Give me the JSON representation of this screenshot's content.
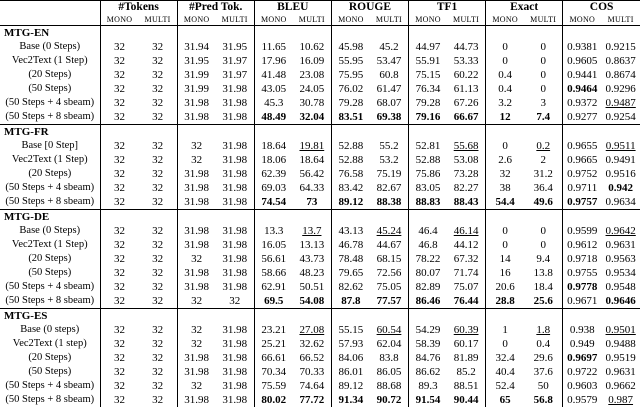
{
  "table": {
    "groups": [
      "#Tokens",
      "#Pred Tok.",
      "BLEU",
      "ROUGE",
      "TF1",
      "Exact",
      "COS"
    ],
    "subheaders": [
      "MONO",
      "MULTI"
    ],
    "sections": [
      {
        "title": "MTG-EN",
        "rows": [
          {
            "label": "Base (0 Steps)",
            "cells": [
              32,
              32,
              31.94,
              31.95,
              11.65,
              10.62,
              45.98,
              45.2,
              44.97,
              44.73,
              0,
              0,
              0.9381,
              0.9215
            ],
            "bold": [],
            "underline": []
          },
          {
            "label": "Vec2Text (1 Step)",
            "cells": [
              32,
              32,
              31.95,
              31.97,
              17.96,
              16.09,
              55.95,
              53.47,
              55.91,
              53.33,
              0,
              0,
              0.9605,
              0.8637
            ],
            "bold": [],
            "underline": []
          },
          {
            "label": "(20 Steps)",
            "cells": [
              32,
              32,
              31.99,
              31.97,
              41.48,
              23.08,
              75.95,
              60.8,
              75.15,
              60.22,
              0.4,
              0,
              0.9441,
              0.8674
            ],
            "bold": [],
            "underline": []
          },
          {
            "label": "(50 Steps)",
            "cells": [
              32,
              32,
              31.99,
              31.98,
              43.05,
              24.05,
              76.02,
              61.47,
              76.34,
              61.13,
              0.4,
              0,
              0.9464,
              0.9296
            ],
            "bold": [
              12
            ],
            "underline": []
          },
          {
            "label": "(50 Steps + 4 sbeam)",
            "cells": [
              32,
              32,
              31.98,
              31.98,
              45.3,
              30.78,
              79.28,
              68.07,
              79.28,
              67.26,
              3.2,
              3,
              0.9372,
              0.9487
            ],
            "bold": [],
            "underline": [
              13
            ]
          },
          {
            "label": "(50 Steps + 8 sbeam)",
            "cells": [
              32,
              32,
              31.98,
              31.98,
              48.49,
              32.04,
              83.51,
              69.38,
              79.16,
              66.67,
              12,
              7.4,
              0.9277,
              0.9254
            ],
            "bold": [
              4,
              5,
              6,
              7,
              8,
              9,
              10,
              11
            ],
            "underline": []
          }
        ]
      },
      {
        "title": "MTG-FR",
        "rows": [
          {
            "label": "Base [0 Step]",
            "cells": [
              32,
              32,
              32,
              31.98,
              18.64,
              19.81,
              52.88,
              55.2,
              52.81,
              55.68,
              0,
              0.2,
              0.9655,
              0.9511
            ],
            "bold": [],
            "underline": [
              5,
              9,
              11,
              13
            ]
          },
          {
            "label": "Vec2Text (1 Step)",
            "cells": [
              32,
              32,
              32,
              31.98,
              18.06,
              18.64,
              52.88,
              53.2,
              52.88,
              53.08,
              2.6,
              2,
              0.9665,
              0.9491
            ],
            "bold": [],
            "underline": []
          },
          {
            "label": "(20 Steps)",
            "cells": [
              32,
              32,
              31.98,
              31.98,
              62.39,
              56.42,
              76.58,
              75.19,
              75.86,
              73.28,
              32,
              31.2,
              0.9752,
              0.9516
            ],
            "bold": [],
            "underline": []
          },
          {
            "label": "(50 Steps + 4 sbeam)",
            "cells": [
              32,
              32,
              31.98,
              31.98,
              69.03,
              64.33,
              83.42,
              82.67,
              83.05,
              82.27,
              38,
              36.4,
              0.9711,
              0.942
            ],
            "bold": [
              13
            ],
            "underline": []
          },
          {
            "label": "(50 Steps + 8 sbeam)",
            "cells": [
              32,
              32,
              31.98,
              31.98,
              74.54,
              73,
              89.12,
              88.38,
              88.83,
              88.43,
              54.4,
              49.6,
              0.9757,
              0.9634
            ],
            "bold": [
              4,
              5,
              6,
              7,
              8,
              9,
              10,
              11,
              12
            ],
            "underline": []
          }
        ]
      },
      {
        "title": "MTG-DE",
        "rows": [
          {
            "label": "Base (0 Steps)",
            "cells": [
              32,
              32,
              31.98,
              31.98,
              13.3,
              13.7,
              43.13,
              45.24,
              46.4,
              46.14,
              0,
              0,
              0.9599,
              0.9642
            ],
            "bold": [],
            "underline": [
              5,
              7,
              9,
              13
            ]
          },
          {
            "label": "Vec2Text (1 Step)",
            "cells": [
              32,
              32,
              31.98,
              31.98,
              16.05,
              13.13,
              46.78,
              44.67,
              46.8,
              44.12,
              0,
              0,
              0.9612,
              0.9631
            ],
            "bold": [],
            "underline": []
          },
          {
            "label": "(20 Steps)",
            "cells": [
              32,
              32,
              32,
              31.98,
              56.61,
              43.73,
              78.48,
              68.15,
              78.22,
              67.32,
              14,
              9.4,
              0.9718,
              0.9563
            ],
            "bold": [],
            "underline": []
          },
          {
            "label": "(50 Steps)",
            "cells": [
              32,
              32,
              31.98,
              31.98,
              58.66,
              48.23,
              79.65,
              72.56,
              80.07,
              71.74,
              16,
              13.8,
              0.9755,
              0.9534
            ],
            "bold": [],
            "underline": []
          },
          {
            "label": "(50 Steps + 4 sbeam)",
            "cells": [
              32,
              32,
              31.98,
              31.98,
              62.91,
              50.51,
              82.62,
              75.05,
              82.89,
              75.07,
              20.6,
              18.4,
              0.9778,
              0.9548
            ],
            "bold": [
              12
            ],
            "underline": []
          },
          {
            "label": "(50 Steps + 8 sbeam)",
            "cells": [
              32,
              32,
              32,
              32,
              69.5,
              54.08,
              87.8,
              77.57,
              86.46,
              76.44,
              28.8,
              25.6,
              0.9671,
              0.9646
            ],
            "bold": [
              4,
              5,
              6,
              7,
              8,
              9,
              10,
              11,
              13
            ],
            "underline": []
          }
        ]
      },
      {
        "title": "MTG-ES",
        "rows": [
          {
            "label": "Base (0 steps)",
            "cells": [
              32,
              32,
              32,
              31.98,
              23.21,
              27.08,
              55.15,
              60.54,
              54.29,
              60.39,
              1,
              1.8,
              0.938,
              0.9501
            ],
            "bold": [],
            "underline": [
              5,
              7,
              9,
              11,
              13
            ]
          },
          {
            "label": "Vec2Text (1 step)",
            "cells": [
              32,
              32,
              32,
              31.98,
              25.21,
              32.62,
              57.93,
              62.04,
              58.39,
              60.17,
              0,
              0.4,
              0.949,
              0.9488
            ],
            "bold": [],
            "underline": []
          },
          {
            "label": "(20 Steps)",
            "cells": [
              32,
              32,
              31.98,
              31.98,
              66.61,
              66.52,
              84.06,
              83.8,
              84.76,
              81.89,
              32.4,
              29.6,
              0.9697,
              0.9519
            ],
            "bold": [
              12
            ],
            "underline": []
          },
          {
            "label": "(50 Steps)",
            "cells": [
              32,
              32,
              31.98,
              31.98,
              70.34,
              70.33,
              86.01,
              86.05,
              86.62,
              85.2,
              40.4,
              37.6,
              0.9722,
              0.9631
            ],
            "bold": [],
            "underline": []
          },
          {
            "label": "(50 Steps + 4 sbeam)",
            "cells": [
              32,
              32,
              32,
              31.98,
              75.59,
              74.64,
              89.12,
              88.68,
              89.3,
              88.51,
              52.4,
              50,
              0.9603,
              0.9662
            ],
            "bold": [],
            "underline": []
          },
          {
            "label": "(50 Steps + 8 sbeam)",
            "cells": [
              32,
              32,
              31.98,
              31.98,
              80.02,
              77.72,
              91.34,
              90.72,
              91.54,
              90.44,
              65,
              56.8,
              0.9579,
              0.987
            ],
            "bold": [
              4,
              5,
              6,
              7,
              8,
              9,
              10,
              11
            ],
            "underline": [
              13
            ]
          }
        ]
      }
    ]
  }
}
